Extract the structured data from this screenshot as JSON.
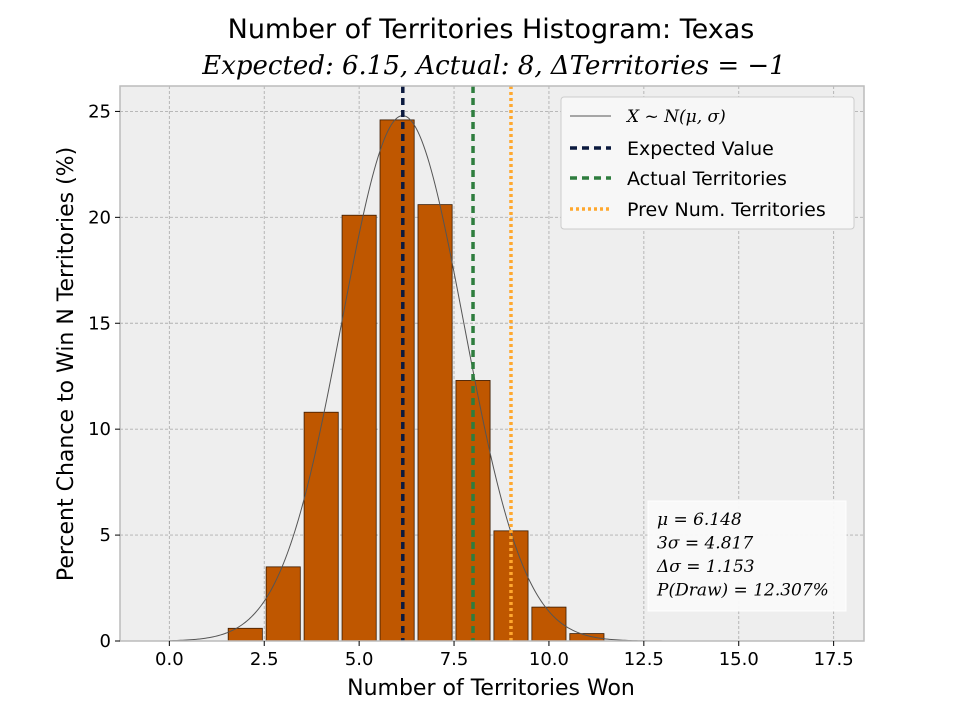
{
  "chart_data": {
    "type": "bar",
    "title": "Number of Territories Histogram: Texas",
    "subtitle": "Expected: 6.15, Actual: 8, ΔTerritories = −1",
    "xlabel": "Number of Territories Won",
    "ylabel": "Percent Chance to Win N Territories (%)",
    "xlim": [
      -1.3,
      18.3
    ],
    "ylim": [
      0,
      26.2
    ],
    "xticks": [
      0,
      2.5,
      5,
      7.5,
      10,
      12.5,
      15,
      17.5
    ],
    "xtick_labels": [
      "0.0",
      "2.5",
      "5.0",
      "7.5",
      "10.0",
      "12.5",
      "15.0",
      "17.5"
    ],
    "yticks": [
      0,
      5,
      10,
      15,
      20,
      25
    ],
    "ytick_labels": [
      "0",
      "5",
      "10",
      "15",
      "20",
      "25"
    ],
    "grid": true,
    "bar_color": "#bf5700",
    "categories": [
      2,
      3,
      4,
      5,
      6,
      7,
      8,
      9,
      10,
      11
    ],
    "values": [
      0.6,
      3.5,
      10.8,
      20.1,
      24.6,
      20.6,
      12.3,
      5.2,
      1.6,
      0.35
    ],
    "normal_curve": {
      "mu": 6.148,
      "sigma": 1.606,
      "peak": 24.8,
      "color": "#555555"
    },
    "vlines": [
      {
        "name": "Expected Value",
        "x": 6.15,
        "color": "#0b1a3f",
        "style": "dashed"
      },
      {
        "name": "Actual Territories",
        "x": 8,
        "color": "#2e7d3e",
        "style": "dashed"
      },
      {
        "name": "Prev Num. Territories",
        "x": 9,
        "color": "#ffa82e",
        "style": "dotted"
      }
    ],
    "legend": {
      "position": "top-right",
      "entries": [
        "X ~ N(μ, σ)",
        "Expected Value",
        "Actual Territories",
        "Prev Num. Territories"
      ]
    },
    "stats_box": {
      "position": "bottom-right",
      "lines": [
        "μ = 6.148",
        "3σ = 4.817",
        "Δσ = 1.153",
        "P(Draw) = 12.307%"
      ]
    }
  }
}
